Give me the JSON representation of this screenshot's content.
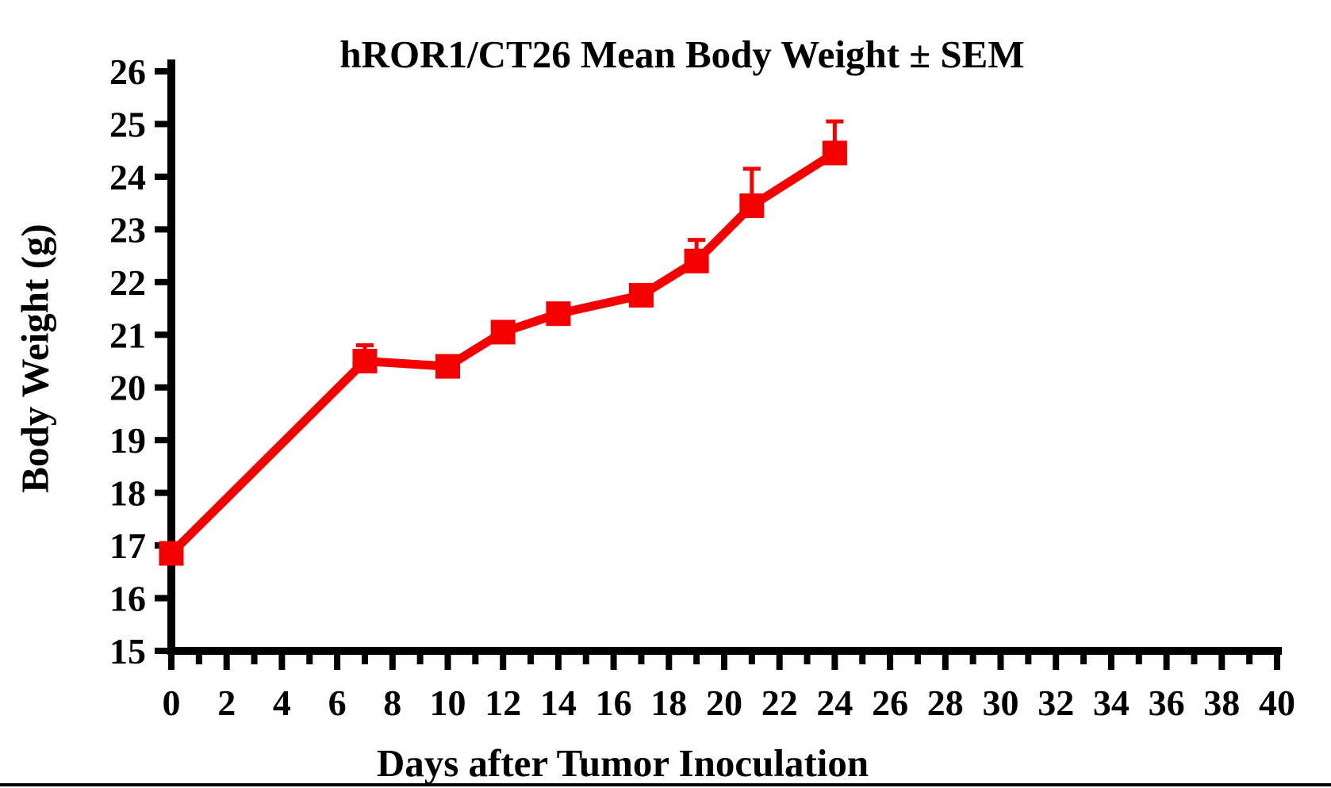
{
  "figure": {
    "background_color": "#ffffff",
    "axis_color": "#000000",
    "bottom_rule_color": "#000000"
  },
  "chart_data": {
    "type": "line",
    "title": "hROR1/CT26 Mean Body Weight ± SEM",
    "xlabel": "Days after Tumor Inoculation",
    "ylabel": "Body Weight (g)",
    "xlim": [
      0,
      40
    ],
    "ylim": [
      15,
      26
    ],
    "grid": false,
    "legend_position": "none",
    "xticks_major": [
      0,
      2,
      4,
      6,
      8,
      10,
      12,
      14,
      16,
      18,
      20,
      22,
      24,
      26,
      28,
      30,
      32,
      34,
      36,
      38,
      40
    ],
    "xticks_minor": [
      1,
      3,
      5,
      7,
      9,
      11,
      13,
      15,
      17,
      19,
      21,
      23,
      25,
      27,
      29,
      31,
      33,
      35,
      37,
      39
    ],
    "yticks": [
      15,
      16,
      17,
      18,
      19,
      20,
      21,
      22,
      23,
      24,
      25,
      26
    ],
    "series": [
      {
        "name": "hROR1/CT26 mean body weight",
        "color": "#f40000",
        "marker": "square",
        "error_bars": "upper SEM only",
        "x": [
          0,
          7,
          10,
          12,
          14,
          17,
          19,
          21,
          24
        ],
        "y": [
          16.85,
          20.5,
          20.4,
          21.05,
          21.4,
          21.75,
          22.4,
          23.45,
          24.45
        ],
        "sem_upper": [
          0,
          0.3,
          0,
          0,
          0,
          0,
          0.4,
          0.7,
          0.6
        ]
      }
    ]
  }
}
